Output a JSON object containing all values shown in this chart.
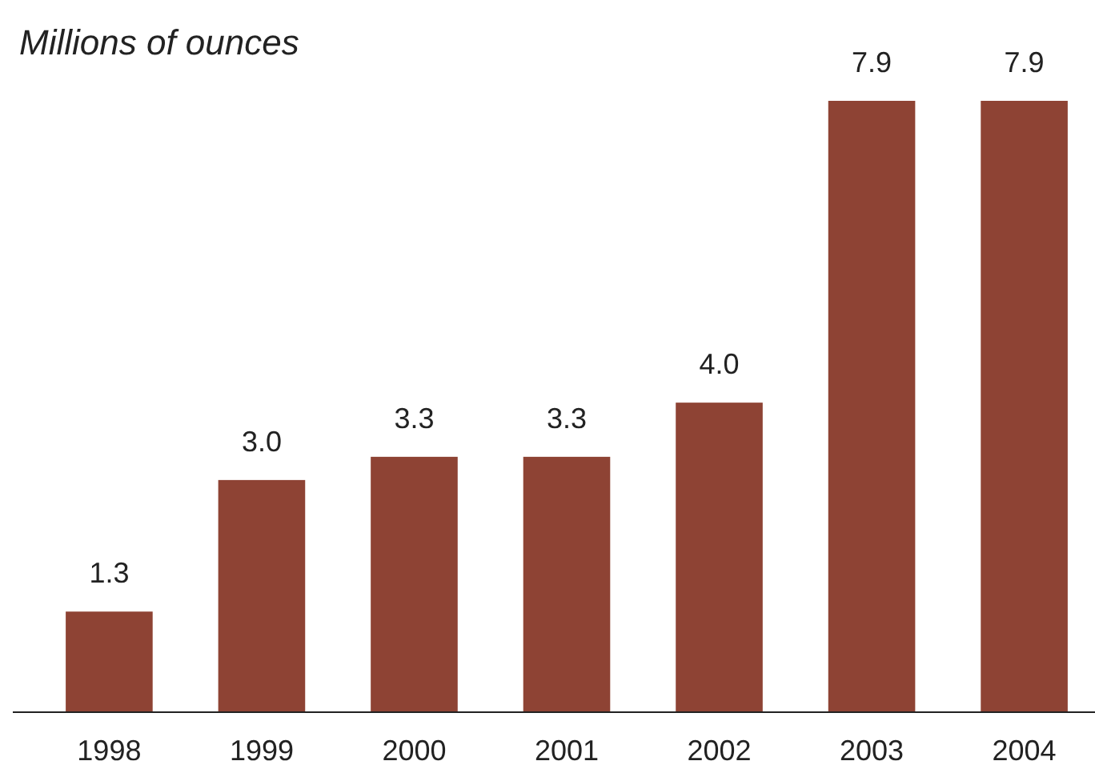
{
  "chart_data": {
    "type": "bar",
    "title": "Millions of ounces",
    "categories": [
      "1998",
      "1999",
      "2000",
      "2001",
      "2002",
      "2003",
      "2004"
    ],
    "values": [
      1.3,
      3.0,
      3.3,
      3.3,
      4.0,
      7.9,
      7.9
    ],
    "value_labels": [
      "1.3",
      "3.0",
      "3.3",
      "3.3",
      "4.0",
      "7.9",
      "7.9"
    ],
    "color": "#8e4334",
    "data_labels": true
  }
}
